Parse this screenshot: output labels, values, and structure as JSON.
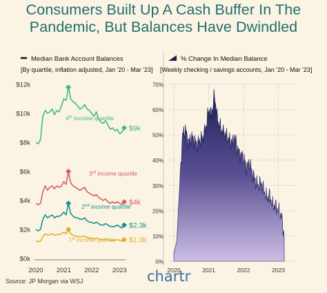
{
  "title_line1": "Consumers Built Up A Cash Buffer In The",
  "title_line2": "Pandemic, But Balances Have Dwindled",
  "source": "Source: JP Morgan via WSJ",
  "brand": "chartr",
  "colors": {
    "title": "#1f6f6b",
    "q4": "#3dba86",
    "q3": "#d45f5f",
    "q2": "#13928d",
    "q1": "#dcb12a",
    "area_top": "#1b1f55",
    "area_bottom": "#c8bde2",
    "background": "#fbf3e4"
  },
  "chart_data": [
    {
      "type": "line",
      "legend": "Median Bank Account Balances",
      "subtitle": "[By quartile, inflation adjusted, Jan '20 - Mar '23]",
      "x_ticks": [
        "2020",
        "2021",
        "2022",
        "2023"
      ],
      "y_ticks": [
        "$0k",
        "$2k",
        "$4k",
        "$6k",
        "$8k",
        "$10k",
        "$12k"
      ],
      "ylim": [
        0,
        12000
      ],
      "x": [
        "2020-01",
        "2020-02",
        "2020-03",
        "2020-04",
        "2020-05",
        "2020-06",
        "2020-07",
        "2020-08",
        "2020-09",
        "2020-10",
        "2020-11",
        "2020-12",
        "2021-01",
        "2021-02",
        "2021-03",
        "2021-04",
        "2021-05",
        "2021-06",
        "2021-07",
        "2021-08",
        "2021-09",
        "2021-10",
        "2021-11",
        "2021-12",
        "2022-01",
        "2022-02",
        "2022-03",
        "2022-04",
        "2022-05",
        "2022-06",
        "2022-07",
        "2022-08",
        "2022-09",
        "2022-10",
        "2022-11",
        "2022-12",
        "2023-01",
        "2023-02",
        "2023-03"
      ],
      "series": [
        {
          "name": "4th income quartile",
          "end_label": "$9k",
          "values": [
            8000,
            7900,
            8200,
            9800,
            10200,
            10000,
            10100,
            10300,
            9900,
            10200,
            10100,
            10500,
            11000,
            10900,
            11800,
            11000,
            10800,
            10700,
            10500,
            10300,
            10400,
            10600,
            10300,
            10200,
            10000,
            9800,
            10100,
            9600,
            9400,
            9300,
            9500,
            9200,
            8900,
            9000,
            8800,
            8900,
            8600,
            8700,
            9000
          ]
        },
        {
          "name": "3rd income quartile",
          "end_label": "$4k",
          "values": [
            3800,
            3700,
            3800,
            4600,
            5000,
            4700,
            4900,
            5000,
            4800,
            5000,
            4900,
            5000,
            5300,
            5100,
            6000,
            5200,
            5000,
            4900,
            4800,
            4700,
            4800,
            4900,
            4600,
            4500,
            4400,
            4300,
            4400,
            4200,
            4100,
            4000,
            4100,
            3900,
            3800,
            3900,
            3800,
            3900,
            3800,
            3700,
            3900
          ]
        },
        {
          "name": "2nd income quartile",
          "end_label": "$2.3k",
          "values": [
            2000,
            1900,
            2000,
            2700,
            3000,
            2800,
            2900,
            3000,
            2800,
            2900,
            2900,
            3000,
            3200,
            3000,
            3800,
            3100,
            2900,
            2800,
            2800,
            2700,
            2700,
            2800,
            2600,
            2500,
            2500,
            2400,
            2500,
            2400,
            2300,
            2300,
            2400,
            2300,
            2200,
            2200,
            2200,
            2300,
            2200,
            2100,
            2300
          ]
        },
        {
          "name": "1st income quartile",
          "end_label": "$1.3k",
          "values": [
            1200,
            1150,
            1200,
            1500,
            1700,
            1600,
            1650,
            1700,
            1600,
            1650,
            1650,
            1700,
            1800,
            1700,
            2000,
            1700,
            1600,
            1550,
            1500,
            1500,
            1500,
            1550,
            1450,
            1400,
            1400,
            1350,
            1400,
            1350,
            1300,
            1300,
            1350,
            1300,
            1250,
            1250,
            1250,
            1300,
            1250,
            1200,
            1300
          ]
        }
      ]
    },
    {
      "type": "area",
      "legend": "% Change In Median Balance",
      "subtitle": "[Weekly checking / savings accounts, Jan '20 - Mar '23]",
      "x_ticks": [
        "2020",
        "2021",
        "2022",
        "2023"
      ],
      "y_ticks": [
        "0%",
        "10%",
        "20%",
        "30%",
        "40%",
        "50%",
        "60%",
        "70%"
      ],
      "ylim": [
        0,
        70
      ],
      "x": [
        "2020-01",
        "2020-02",
        "2020-03",
        "2020-04",
        "2020-05",
        "2020-06",
        "2020-07",
        "2020-08",
        "2020-09",
        "2020-10",
        "2020-11",
        "2020-12",
        "2021-01",
        "2021-02",
        "2021-03",
        "2021-04",
        "2021-05",
        "2021-06",
        "2021-07",
        "2021-08",
        "2021-09",
        "2021-10",
        "2021-11",
        "2021-12",
        "2022-01",
        "2022-02",
        "2022-03",
        "2022-04",
        "2022-05",
        "2022-06",
        "2022-07",
        "2022-08",
        "2022-09",
        "2022-10",
        "2022-11",
        "2022-12",
        "2023-01",
        "2023-02",
        "2023-03"
      ],
      "values": [
        3,
        8,
        30,
        50,
        52,
        47,
        49,
        48,
        46,
        48,
        49,
        53,
        60,
        58,
        66,
        56,
        53,
        51,
        50,
        48,
        47,
        49,
        44,
        42,
        41,
        37,
        39,
        35,
        32,
        30,
        31,
        28,
        25,
        26,
        22,
        22,
        20,
        18,
        10
      ]
    }
  ]
}
